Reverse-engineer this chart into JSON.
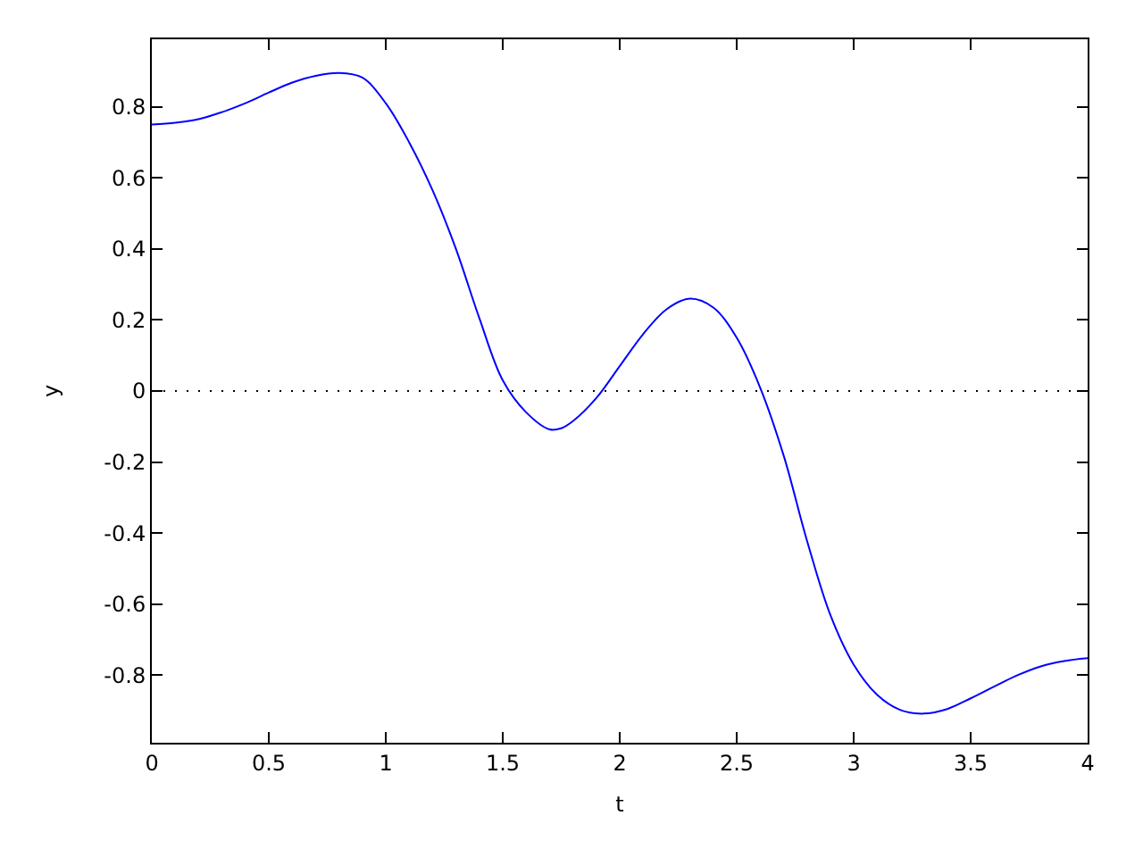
{
  "chart_data": {
    "type": "line",
    "xlabel": "t",
    "ylabel": "y",
    "x": [
      0,
      0.1,
      0.2,
      0.3,
      0.4,
      0.5,
      0.6,
      0.7,
      0.8,
      0.9,
      1.0,
      1.1,
      1.2,
      1.3,
      1.4,
      1.5,
      1.6,
      1.7,
      1.75,
      1.8,
      1.9,
      2.0,
      2.1,
      2.2,
      2.3,
      2.4,
      2.5,
      2.6,
      2.7,
      2.8,
      2.9,
      3.0,
      3.1,
      3.2,
      3.3,
      3.4,
      3.5,
      3.6,
      3.7,
      3.8,
      3.9,
      4.0
    ],
    "series": [
      {
        "color": "#0000ff",
        "values": [
          0.75,
          0.755,
          0.765,
          0.785,
          0.81,
          0.84,
          0.868,
          0.887,
          0.895,
          0.882,
          0.81,
          0.7,
          0.565,
          0.4,
          0.205,
          0.03,
          -0.06,
          -0.108,
          -0.105,
          -0.085,
          -0.02,
          0.07,
          0.16,
          0.23,
          0.26,
          0.235,
          0.15,
          0.01,
          -0.18,
          -0.42,
          -0.63,
          -0.77,
          -0.855,
          -0.898,
          -0.908,
          -0.895,
          -0.865,
          -0.832,
          -0.8,
          -0.775,
          -0.76,
          -0.752
        ]
      }
    ],
    "xlim": [
      0,
      4
    ],
    "xticks": [
      0,
      0.5,
      1,
      1.5,
      2,
      2.5,
      3,
      3.5,
      4
    ],
    "ylim": [
      -0.99,
      0.99
    ],
    "yticks": [
      -0.8,
      -0.6,
      -0.4,
      -0.2,
      0,
      0.2,
      0.4,
      0.6,
      0.8
    ],
    "ref_lines": [
      {
        "axis": "y",
        "value": 0,
        "color": "#000000",
        "line_style": "dotted"
      }
    ]
  }
}
